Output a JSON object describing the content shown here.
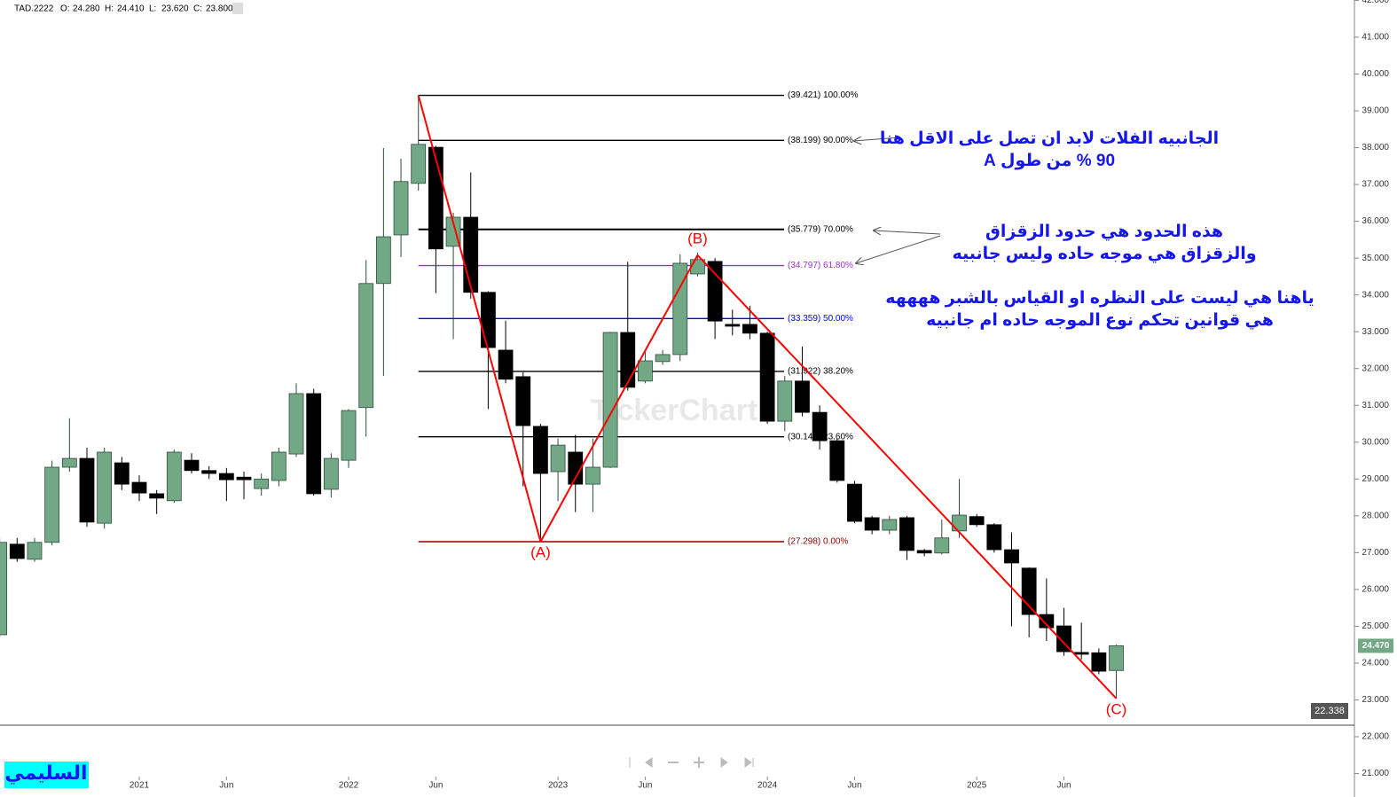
{
  "chart_data": {
    "type": "candlestick",
    "header": {
      "symbol": "TAD.2222",
      "fields": [
        {
          "key": "O:",
          "value": 24.28,
          "label": "24.280"
        },
        {
          "key": "H:",
          "value": 24.41,
          "label": "24.410"
        },
        {
          "key": "L:",
          "value": 23.62,
          "label": "23.620"
        },
        {
          "key": "C:",
          "value": 23.8,
          "label": "23.800"
        }
      ]
    },
    "categories": [
      null,
      null,
      null,
      null,
      null,
      null,
      null,
      null,
      "2021",
      null,
      null,
      null,
      null,
      "Jun",
      null,
      null,
      null,
      null,
      null,
      null,
      "2022",
      null,
      null,
      null,
      null,
      "Jun",
      null,
      null,
      null,
      null,
      null,
      null,
      "2023",
      null,
      null,
      null,
      null,
      "Jun",
      null,
      null,
      null,
      null,
      null,
      null,
      "2024",
      null,
      null,
      null,
      null,
      "Jun",
      null,
      null,
      null,
      null,
      null,
      null,
      "2025",
      null,
      null,
      null,
      null,
      "Jun",
      null,
      null,
      null
    ],
    "ohlc": [
      [
        24.77,
        27.4,
        24.7,
        27.28
      ],
      [
        27.23,
        27.4,
        26.75,
        26.84
      ],
      [
        26.82,
        27.4,
        26.75,
        27.28
      ],
      [
        27.28,
        29.5,
        27.2,
        29.32
      ],
      [
        29.32,
        30.65,
        29.2,
        29.56
      ],
      [
        29.56,
        29.85,
        27.7,
        27.83
      ],
      [
        27.8,
        29.85,
        27.65,
        29.73
      ],
      [
        29.44,
        29.6,
        28.7,
        28.86
      ],
      [
        28.91,
        29.1,
        28.4,
        28.62
      ],
      [
        28.6,
        28.7,
        28.05,
        28.48
      ],
      [
        28.41,
        29.8,
        28.35,
        29.73
      ],
      [
        29.51,
        29.7,
        29.15,
        29.23
      ],
      [
        29.23,
        29.35,
        29.0,
        29.15
      ],
      [
        29.15,
        29.3,
        28.4,
        28.98
      ],
      [
        29.05,
        29.2,
        28.45,
        28.98
      ],
      [
        28.74,
        29.15,
        28.55,
        29.0
      ],
      [
        28.96,
        29.85,
        28.8,
        29.73
      ],
      [
        29.68,
        31.6,
        29.6,
        31.32
      ],
      [
        31.32,
        31.45,
        28.55,
        28.6
      ],
      [
        28.72,
        29.7,
        28.5,
        29.56
      ],
      [
        29.51,
        30.9,
        29.3,
        30.86
      ],
      [
        30.94,
        34.95,
        30.15,
        34.31
      ],
      [
        34.31,
        37.99,
        31.8,
        35.58
      ],
      [
        35.63,
        37.7,
        35.03,
        37.08
      ],
      [
        37.03,
        39.421,
        36.83,
        38.09
      ],
      [
        38.01,
        38.05,
        34.05,
        35.25
      ],
      [
        35.32,
        36.23,
        32.8,
        36.11
      ],
      [
        36.11,
        37.33,
        33.9,
        34.07
      ],
      [
        34.07,
        34.1,
        30.9,
        32.57
      ],
      [
        32.5,
        33.3,
        31.6,
        31.71
      ],
      [
        31.78,
        31.9,
        28.8,
        30.45
      ],
      [
        30.43,
        30.5,
        27.298,
        29.15
      ],
      [
        29.2,
        30.1,
        28.4,
        29.92
      ],
      [
        29.73,
        30.2,
        28.1,
        28.86
      ],
      [
        28.86,
        30.1,
        28.1,
        29.32
      ],
      [
        29.32,
        33.0,
        29.3,
        32.98
      ],
      [
        32.98,
        34.9,
        31.4,
        31.49
      ],
      [
        31.66,
        32.5,
        31.6,
        32.21
      ],
      [
        32.19,
        32.5,
        32.1,
        32.38
      ],
      [
        32.38,
        35.1,
        32.2,
        34.86
      ],
      [
        34.57,
        35.15,
        34.5,
        34.96
      ],
      [
        34.91,
        35.0,
        32.8,
        33.29
      ],
      [
        33.2,
        33.6,
        32.9,
        33.15
      ],
      [
        33.2,
        33.7,
        32.8,
        32.96
      ],
      [
        32.96,
        33.0,
        30.5,
        30.57
      ],
      [
        30.57,
        31.8,
        30.3,
        31.66
      ],
      [
        31.66,
        32.6,
        30.7,
        30.81
      ],
      [
        30.81,
        31.0,
        29.8,
        30.04
      ],
      [
        30.04,
        30.1,
        28.9,
        28.96
      ],
      [
        28.86,
        28.95,
        27.8,
        27.85
      ],
      [
        27.95,
        28.0,
        27.5,
        27.61
      ],
      [
        27.61,
        28.0,
        27.5,
        27.9
      ],
      [
        27.95,
        28.0,
        26.8,
        27.06
      ],
      [
        27.06,
        27.1,
        26.9,
        26.99
      ],
      [
        26.99,
        27.9,
        26.95,
        27.4
      ],
      [
        27.59,
        29.0,
        27.4,
        28.02
      ],
      [
        27.98,
        28.05,
        27.7,
        27.76
      ],
      [
        27.76,
        27.8,
        27.0,
        27.08
      ],
      [
        27.08,
        27.55,
        25.0,
        26.72
      ],
      [
        26.58,
        26.6,
        24.7,
        25.32
      ],
      [
        25.32,
        26.3,
        24.6,
        24.96
      ],
      [
        25.01,
        25.5,
        24.2,
        24.31
      ],
      [
        24.29,
        25.1,
        24.1,
        24.24
      ],
      [
        24.28,
        24.4,
        23.7,
        23.78
      ],
      [
        23.8,
        24.5,
        23.04,
        24.47
      ]
    ],
    "up_color": "#72a886",
    "down_color": "#000000",
    "ylim": [
      20.58,
      42.01
    ],
    "yticks": [
      {
        "value": 21,
        "label": "21.000"
      },
      {
        "value": 22,
        "label": "22.000"
      },
      {
        "value": 23,
        "label": "23.000"
      },
      {
        "value": 24,
        "label": "24.000"
      },
      {
        "value": 25,
        "label": "25.000"
      },
      {
        "value": 26,
        "label": "26.000"
      },
      {
        "value": 27,
        "label": "27.000"
      },
      {
        "value": 28,
        "label": "28.000"
      },
      {
        "value": 29,
        "label": "29.000"
      },
      {
        "value": 30,
        "label": "30.000"
      },
      {
        "value": 31,
        "label": "31.000"
      },
      {
        "value": 32,
        "label": "32.000"
      },
      {
        "value": 33,
        "label": "33.000"
      },
      {
        "value": 34,
        "label": "34.000"
      },
      {
        "value": 35,
        "label": "35.000"
      },
      {
        "value": 36,
        "label": "36.000"
      },
      {
        "value": 37,
        "label": "37.000"
      },
      {
        "value": 38,
        "label": "38.000"
      },
      {
        "value": 39,
        "label": "39.000"
      },
      {
        "value": 40,
        "label": "40.000"
      },
      {
        "value": 41,
        "label": "41.000"
      },
      {
        "value": 42,
        "label": "42.000"
      }
    ],
    "fib_levels": [
      {
        "value": 39.421,
        "label": "(39.421) 100.00%",
        "color": "#000000"
      },
      {
        "value": 38.199,
        "label": "(38.199) 90.00%",
        "color": "#000000"
      },
      {
        "value": 35.779,
        "label": "(35.779) 70.00%",
        "color": "#000000"
      },
      {
        "value": 34.797,
        "label": "(34.797) 61.80%",
        "color": "#9932cc"
      },
      {
        "value": 33.359,
        "label": "(33.359) 50.00%",
        "color": "#0000ff"
      },
      {
        "value": 31.922,
        "label": "(31.922) 38.20%",
        "color": "#000000"
      },
      {
        "value": 30.146,
        "label": "(30.146) 23.60%",
        "color": "#000000"
      },
      {
        "value": 27.298,
        "label": "(27.298) 0.00%",
        "color": "#8b0000"
      }
    ],
    "fib_start_index": 24,
    "wave_start": {
      "index": 24,
      "value": 39.421
    },
    "waves": [
      {
        "label": "(A)",
        "index": 31,
        "value": 27.298
      },
      {
        "label": "(B)",
        "index": 40,
        "value": 35.08
      },
      {
        "label": "(C)",
        "index": 64,
        "value": 23.04
      }
    ],
    "wave_color": "#ff0000",
    "last_price": {
      "value": 24.47,
      "label": "24.470"
    },
    "low_marker": {
      "value": 22.338,
      "label": "22.338"
    },
    "annotations": [
      {
        "lines": [
          "الجانبيه الفلات لابد ان تصل على الاقل هنا",
          "90 % من طول A"
        ]
      },
      {
        "lines": [
          "هذه الحدود هي حدود الزقزاق",
          "والزقزاق هي موجه حاده وليس جانبيه"
        ]
      },
      {
        "lines": [
          "ياهنا هي ليست على النظره او القياس بالشبر ههههه",
          "هي قوانين تحكم نوع الموجه حاده ام جانبيه"
        ]
      }
    ],
    "watermark": "TickerChart",
    "author": "السليمي"
  }
}
